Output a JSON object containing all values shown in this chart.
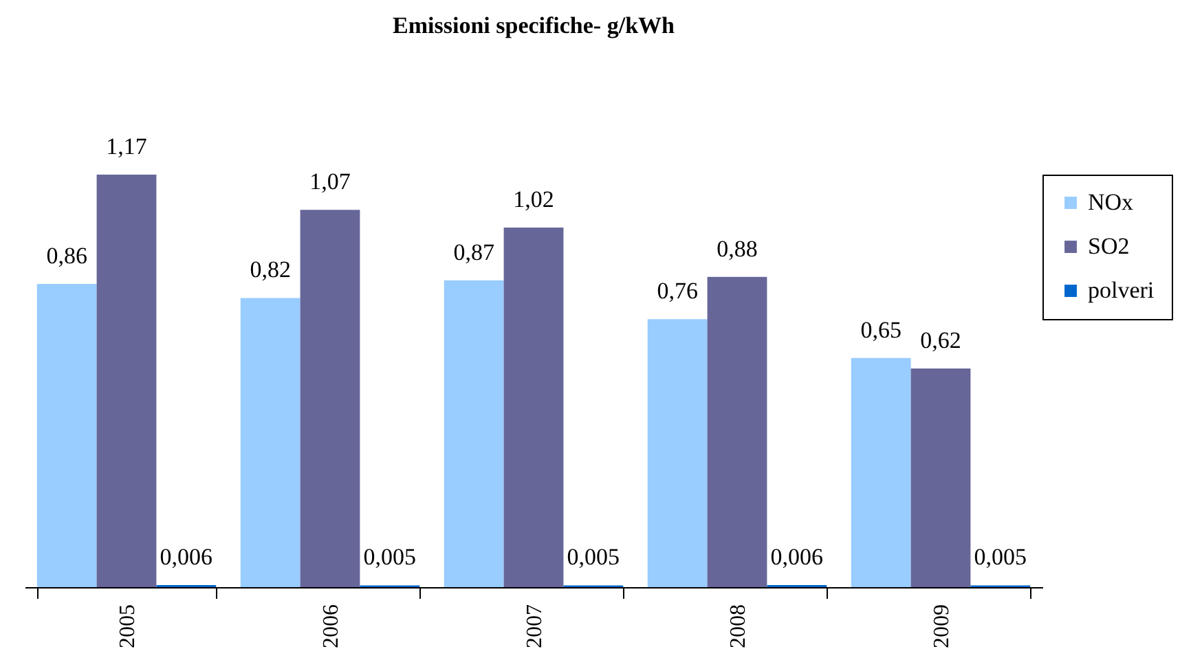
{
  "chart_data": {
    "type": "bar",
    "title": "Emissioni specifiche- g/kWh",
    "categories": [
      "2005",
      "2006",
      "2007",
      "2008",
      "2009"
    ],
    "series": [
      {
        "name": "NOx",
        "color": "#99ccff",
        "values": [
          0.86,
          0.82,
          0.87,
          0.76,
          0.65
        ],
        "value_labels": [
          "0,86",
          "0,82",
          "0,87",
          "0,76",
          "0,65"
        ]
      },
      {
        "name": "SO2",
        "color": "#666699",
        "values": [
          1.17,
          1.07,
          1.02,
          0.88,
          0.62
        ],
        "value_labels": [
          "1,17",
          "1,07",
          "1,02",
          "0,88",
          "0,62"
        ]
      },
      {
        "name": "polveri",
        "color": "#0066cc",
        "values": [
          0.006,
          0.005,
          0.005,
          0.006,
          0.005
        ],
        "value_labels": [
          "0,006",
          "0,005",
          "0,005",
          "0,006",
          "0,005"
        ]
      }
    ],
    "legend": "right"
  }
}
